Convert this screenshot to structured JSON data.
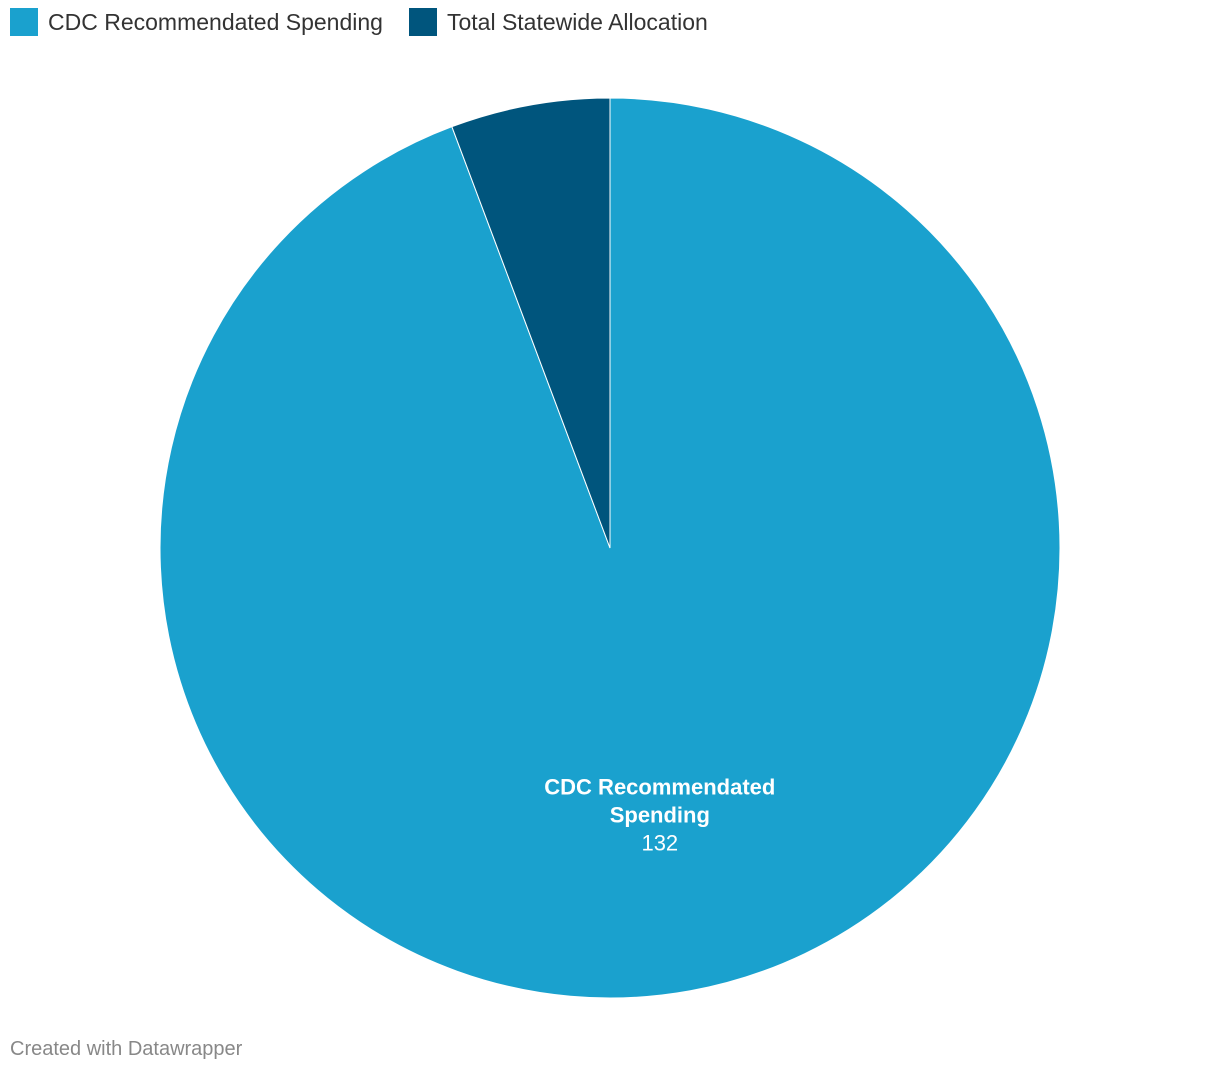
{
  "chart_data": {
    "type": "pie",
    "categories": [
      "CDC Recommendated Spending",
      "Total Statewide Allocation"
    ],
    "values": [
      132,
      8
    ],
    "colors": [
      "#1aa1ce",
      "#00557d"
    ],
    "legend_position": "top-left",
    "slice_labels": [
      {
        "name_lines": [
          "CDC Recommendated",
          "Spending"
        ],
        "value": "132"
      }
    ]
  },
  "legend": {
    "items": [
      {
        "label": "CDC Recommendated Spending",
        "color": "#1aa1ce"
      },
      {
        "label": "Total Statewide Allocation",
        "color": "#00557d"
      }
    ]
  },
  "footer": {
    "credit": "Created with Datawrapper"
  }
}
